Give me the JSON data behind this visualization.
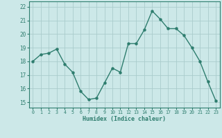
{
  "x": [
    0,
    1,
    2,
    3,
    4,
    5,
    6,
    7,
    8,
    9,
    10,
    11,
    12,
    13,
    14,
    15,
    16,
    17,
    18,
    19,
    20,
    21,
    22,
    23
  ],
  "y": [
    18.0,
    18.5,
    18.6,
    18.9,
    17.8,
    17.2,
    15.8,
    15.2,
    15.3,
    16.4,
    17.5,
    17.2,
    19.3,
    19.3,
    20.3,
    21.7,
    21.1,
    20.4,
    20.4,
    19.9,
    19.0,
    18.0,
    16.5,
    15.1
  ],
  "xlabel": "Humidex (Indice chaleur)",
  "ylim": [
    14.6,
    22.4
  ],
  "xlim": [
    -0.5,
    23.5
  ],
  "yticks": [
    15,
    16,
    17,
    18,
    19,
    20,
    21,
    22
  ],
  "xticks": [
    0,
    1,
    2,
    3,
    4,
    5,
    6,
    7,
    8,
    9,
    10,
    11,
    12,
    13,
    14,
    15,
    16,
    17,
    18,
    19,
    20,
    21,
    22,
    23
  ],
  "line_color": "#2e7d6e",
  "marker_color": "#2e7d6e",
  "bg_color": "#cce8e8",
  "grid_color": "#aacccc",
  "spine_color": "#2e7d6e",
  "tick_color": "#2e7d6e",
  "label_color": "#2e7d6e"
}
